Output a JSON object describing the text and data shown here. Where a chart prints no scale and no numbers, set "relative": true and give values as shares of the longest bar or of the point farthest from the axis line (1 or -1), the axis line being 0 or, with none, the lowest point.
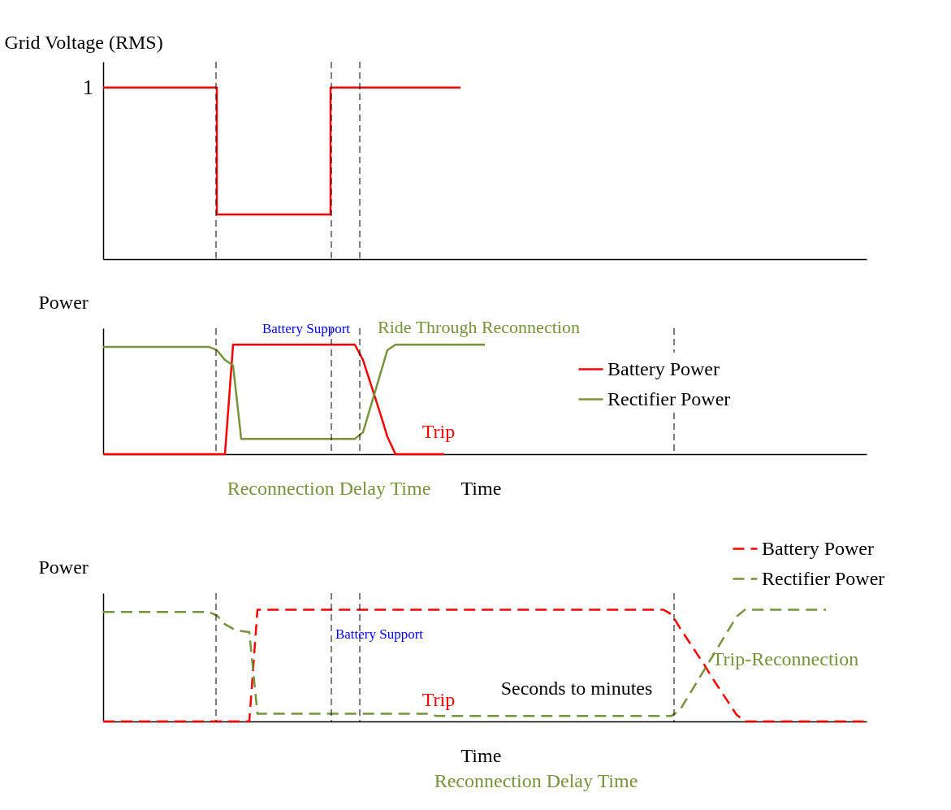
{
  "chart_data": [
    {
      "type": "step",
      "ylabel": "Grid Voltage (RMS)",
      "relative": true,
      "grid": false,
      "legend": false,
      "categories": [
        null,
        null,
        null,
        null,
        null,
        null,
        null,
        null,
        null,
        null,
        null,
        null,
        null,
        null,
        null,
        null,
        null,
        null,
        null,
        null,
        null,
        null,
        null,
        null,
        null,
        null,
        null,
        null,
        null,
        null,
        null,
        null,
        null,
        null,
        null,
        null,
        null,
        null,
        null,
        null,
        null,
        null,
        null,
        null,
        null,
        null,
        null,
        null,
        null,
        null,
        null,
        null,
        null,
        null,
        null,
        null,
        null,
        null,
        null,
        null,
        null,
        null,
        null,
        null,
        null,
        null,
        null,
        null,
        null,
        null,
        null,
        null,
        null,
        null,
        null,
        null,
        null,
        null,
        null,
        null,
        null,
        null,
        null,
        null,
        null,
        null,
        null,
        null,
        null,
        null,
        null,
        null,
        null,
        null,
        null
      ],
      "series": [
        {
          "color": "#ff0000",
          "values": [
            1,
            1,
            1,
            1,
            1,
            1,
            1,
            1,
            1,
            1,
            1,
            1,
            1,
            1,
            0.26,
            0.26,
            0.26,
            0.26,
            0.26,
            0.26,
            0.26,
            0.26,
            0.26,
            0.26,
            0.26,
            0.26,
            0.26,
            0.26,
            1,
            1,
            1,
            1,
            1,
            1,
            1,
            1,
            1,
            1,
            1,
            1,
            1,
            1,
            1,
            1,
            1,
            null,
            null,
            null,
            null,
            null,
            null,
            null,
            null,
            null,
            null,
            null,
            null,
            null,
            null,
            null,
            null,
            null,
            null,
            null,
            null,
            null,
            null,
            null,
            null,
            null,
            null,
            null,
            null,
            null,
            null,
            null,
            null,
            null,
            null,
            null,
            null,
            null,
            null,
            null,
            null,
            null,
            null,
            null,
            null,
            null,
            null,
            null,
            null,
            null,
            null
          ]
        }
      ],
      "annotations": [
        "1"
      ]
    },
    {
      "type": "line",
      "ylabel": "Power",
      "xlabel": "Time",
      "relative": true,
      "grid": false,
      "legend": "right",
      "line_style": "solid",
      "categories": [
        null,
        null,
        null,
        null,
        null,
        null,
        null,
        null,
        null,
        null,
        null,
        null,
        null,
        null,
        null,
        null,
        null,
        null,
        null,
        null,
        null,
        null,
        null,
        null,
        null,
        null,
        null,
        null,
        null,
        null,
        null,
        null,
        null,
        null,
        null,
        null,
        null,
        null,
        null,
        null,
        null,
        null,
        null,
        null,
        null,
        null,
        null,
        null,
        null,
        null,
        null,
        null,
        null,
        null,
        null,
        null,
        null,
        null,
        null,
        null,
        null,
        null,
        null,
        null,
        null,
        null,
        null,
        null,
        null,
        null,
        null,
        null,
        null,
        null,
        null,
        null,
        null,
        null,
        null,
        null,
        null,
        null,
        null,
        null,
        null,
        null,
        null,
        null,
        null,
        null,
        null,
        null,
        null,
        null,
        null
      ],
      "series": [
        {
          "name": "Battery Power",
          "color": "#ff0000",
          "values": [
            0,
            0,
            0,
            0,
            0,
            0,
            0,
            0,
            0,
            0,
            0,
            0,
            0,
            0,
            0,
            0,
            1,
            1,
            1,
            1,
            1,
            1,
            1,
            1,
            1,
            1,
            1,
            1,
            1,
            1,
            1,
            1,
            0.86,
            0.63,
            0.4,
            0.16,
            0,
            0,
            0,
            0,
            0,
            0,
            0,
            null,
            null,
            null,
            null,
            null,
            null,
            null,
            null,
            null,
            null,
            null,
            null,
            null,
            null,
            null,
            null,
            null,
            null,
            null,
            null,
            null,
            null,
            null,
            null,
            null,
            null,
            null,
            null,
            null,
            null,
            null,
            null,
            null,
            null,
            null,
            null,
            null,
            null,
            null,
            null,
            null,
            null,
            null,
            null,
            null,
            null,
            null,
            null,
            null,
            null,
            null,
            null
          ]
        },
        {
          "name": "Rectifier Power",
          "color": "#77933c",
          "values": [
            0.98,
            0.98,
            0.98,
            0.98,
            0.98,
            0.98,
            0.98,
            0.98,
            0.98,
            0.98,
            0.98,
            0.98,
            0.98,
            0.98,
            0.95,
            0.86,
            0.81,
            0.14,
            0.14,
            0.14,
            0.14,
            0.14,
            0.14,
            0.14,
            0.14,
            0.14,
            0.14,
            0.14,
            0.14,
            0.14,
            0.14,
            0.14,
            0.2,
            0.45,
            0.7,
            0.95,
            1,
            1,
            1,
            1,
            1,
            1,
            1,
            1,
            1,
            1,
            1,
            1,
            null,
            null,
            null,
            null,
            null,
            null,
            null,
            null,
            null,
            null,
            null,
            null,
            null,
            null,
            null,
            null,
            null,
            null,
            null,
            null,
            null,
            null,
            null,
            null,
            null,
            null,
            null,
            null,
            null,
            null,
            null,
            null,
            null,
            null,
            null,
            null,
            null,
            null,
            null,
            null,
            null,
            null,
            null,
            null,
            null,
            null,
            null
          ]
        }
      ],
      "annotations": [
        "Battery Support",
        "Ride Through Reconnection",
        "Trip",
        "Reconnection Delay Time"
      ]
    },
    {
      "type": "line",
      "ylabel": "Power",
      "xlabel": "Time",
      "relative": true,
      "grid": false,
      "legend": "top right",
      "line_style": "dashed",
      "categories": [
        null,
        null,
        null,
        null,
        null,
        null,
        null,
        null,
        null,
        null,
        null,
        null,
        null,
        null,
        null,
        null,
        null,
        null,
        null,
        null,
        null,
        null,
        null,
        null,
        null,
        null,
        null,
        null,
        null,
        null,
        null,
        null,
        null,
        null,
        null,
        null,
        null,
        null,
        null,
        null,
        null,
        null,
        null,
        null,
        null,
        null,
        null,
        null,
        null,
        null,
        null,
        null,
        null,
        null,
        null,
        null,
        null,
        null,
        null,
        null,
        null,
        null,
        null,
        null,
        null,
        null,
        null,
        null,
        null,
        null,
        null,
        null,
        null,
        null,
        null,
        null,
        null,
        null,
        null,
        null,
        null,
        null,
        null,
        null,
        null,
        null,
        null,
        null,
        null,
        null,
        null,
        null,
        null,
        null,
        null
      ],
      "series": [
        {
          "name": "Battery Power",
          "color": "#ff0000",
          "values": [
            0,
            0,
            0,
            0,
            0,
            0,
            0,
            0,
            0,
            0,
            0,
            0,
            0,
            0,
            0,
            0,
            0,
            0,
            0,
            1,
            1,
            1,
            1,
            1,
            1,
            1,
            1,
            1,
            1,
            1,
            1,
            1,
            1,
            1,
            1,
            1,
            1,
            1,
            1,
            1,
            1,
            1,
            1,
            1,
            1,
            1,
            1,
            1,
            1,
            1,
            1,
            1,
            1,
            1,
            1,
            1,
            1,
            1,
            1,
            1,
            1,
            1,
            1,
            1,
            1,
            1,
            1,
            1,
            1,
            1,
            0.96,
            0.84,
            0.73,
            0.62,
            0.51,
            0.39,
            0.28,
            0.17,
            0.06,
            0,
            0,
            0,
            0,
            0,
            0,
            0,
            0,
            0,
            0,
            0,
            0,
            0,
            0,
            0,
            0
          ]
        },
        {
          "name": "Rectifier Power",
          "color": "#77933c",
          "values": [
            0.98,
            0.98,
            0.98,
            0.98,
            0.98,
            0.98,
            0.98,
            0.98,
            0.98,
            0.98,
            0.98,
            0.98,
            0.98,
            0.98,
            0.95,
            0.87,
            0.83,
            0.81,
            0.8,
            0.07,
            0.07,
            0.07,
            0.07,
            0.07,
            0.07,
            0.07,
            0.07,
            0.07,
            0.07,
            0.07,
            0.07,
            0.07,
            0.07,
            0.07,
            0.07,
            0.07,
            0.07,
            0.07,
            0.07,
            0.07,
            0.07,
            0.05,
            0.05,
            0.05,
            0.05,
            0.05,
            0.05,
            0.05,
            0.05,
            0.05,
            0.05,
            0.05,
            0.05,
            0.05,
            0.05,
            0.05,
            0.05,
            0.05,
            0.05,
            0.05,
            0.05,
            0.05,
            0.05,
            0.05,
            0.05,
            0.05,
            0.05,
            0.05,
            0.05,
            0.05,
            0.05,
            0.1,
            0.22,
            0.34,
            0.46,
            0.58,
            0.7,
            0.82,
            0.94,
            1,
            1,
            1,
            1,
            1,
            1,
            1,
            1,
            1,
            1,
            1,
            null,
            null,
            null,
            null,
            null
          ]
        }
      ],
      "annotations": [
        "Battery Support",
        "Trip",
        "Seconds to minutes",
        "Trip-Reconnection",
        "Reconnection Delay Time"
      ]
    }
  ]
}
